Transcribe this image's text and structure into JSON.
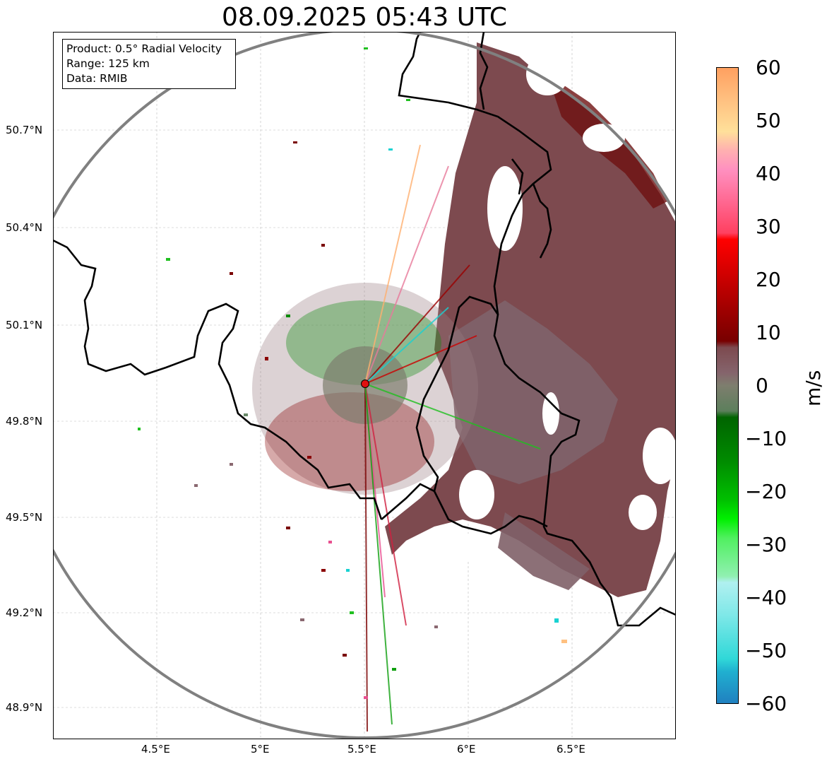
{
  "title": "08.09.2025 05:43 UTC",
  "info": {
    "product": "Product: 0.5° Radial Velocity",
    "range": "Range: 125 km",
    "data": "Data: RMIB"
  },
  "y_ticks": [
    "50.7°N",
    "50.4°N",
    "50.1°N",
    "49.8°N",
    "49.5°N",
    "49.2°N",
    "48.9°N"
  ],
  "x_ticks": [
    "4.5°E",
    "5°E",
    "5.5°E",
    "6°E",
    "6.5°E"
  ],
  "colorbar": {
    "label": "m/s",
    "ticks": [
      "60",
      "50",
      "40",
      "30",
      "20",
      "10",
      "0",
      "−10",
      "−20",
      "−30",
      "−40",
      "−50",
      "−60"
    ],
    "range": [
      -60,
      60
    ]
  },
  "radar": {
    "lon": 5.505,
    "lat": 49.914,
    "range_km": 125
  },
  "colors": {
    "receding_dark": "#7a0000",
    "weak_echo": "#7d4a4f",
    "zero": "#7e7e6e",
    "approaching": "#008c00",
    "boundary": "#000000",
    "range_ring": "#808080",
    "radar_marker": "#e01010"
  }
}
